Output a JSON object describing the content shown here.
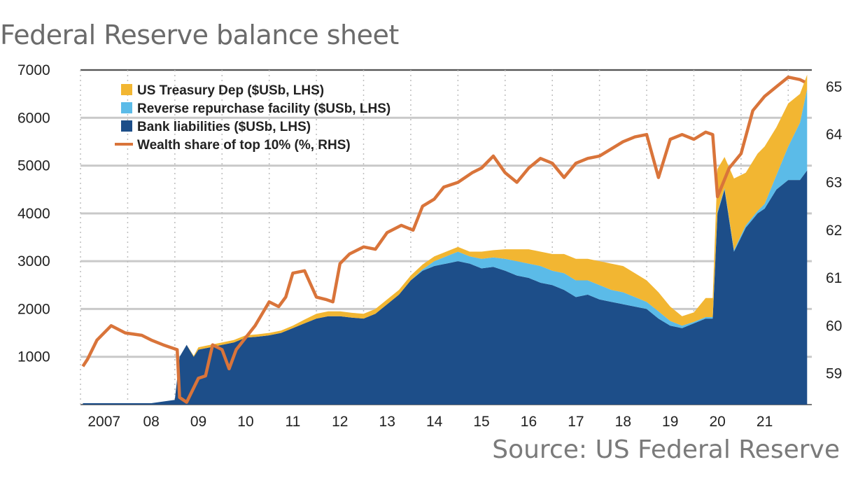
{
  "title": "Federal Reserve balance sheet",
  "source": "Source: US Federal Reserve",
  "chart_data": {
    "type": "area",
    "x_range": [
      2006.5,
      2022.0
    ],
    "ylim_left": [
      0,
      7000
    ],
    "ylim_right": [
      58.35,
      65.35
    ],
    "left_ticks": [
      1000,
      2000,
      3000,
      4000,
      5000,
      6000,
      7000
    ],
    "left_tick_labels": [
      "1000",
      "2000",
      "3000",
      "4000",
      "5000",
      "6000",
      "7000"
    ],
    "right_ticks": [
      59,
      60,
      61,
      62,
      63,
      64,
      65
    ],
    "right_tick_labels": [
      "59",
      "60",
      "61",
      "62",
      "63",
      "64",
      "65"
    ],
    "x_ticks": [
      2007,
      2008,
      2009,
      2010,
      2011,
      2012,
      2013,
      2014,
      2015,
      2016,
      2017,
      2018,
      2019,
      2020,
      2021
    ],
    "x_tick_labels": [
      "2007",
      "08",
      "09",
      "10",
      "11",
      "12",
      "13",
      "14",
      "15",
      "16",
      "17",
      "18",
      "19",
      "20",
      "21"
    ],
    "grid": true,
    "legend_position": "top-left",
    "colors": {
      "bank": "#1d4e89",
      "rrp": "#5bbbe8",
      "tga": "#f2b632",
      "wealth": "#d9743a",
      "grid": "#c9c9c9"
    },
    "legend": [
      "US Treasury Dep ($USb, LHS)",
      "Reverse repurchase facility ($USb, LHS)",
      "Bank liabilities ($USb, LHS)",
      "Wealth share of top 10% (%, RHS)"
    ],
    "stack_x": [
      2006.55,
      2007.0,
      2007.5,
      2008.0,
      2008.5,
      2008.6,
      2008.75,
      2008.9,
      2009.0,
      2009.25,
      2009.5,
      2009.75,
      2010.0,
      2010.25,
      2010.5,
      2010.75,
      2011.0,
      2011.25,
      2011.5,
      2011.75,
      2012.0,
      2012.25,
      2012.5,
      2012.75,
      2013.0,
      2013.25,
      2013.5,
      2013.75,
      2014.0,
      2014.25,
      2014.5,
      2014.75,
      2015.0,
      2015.25,
      2015.5,
      2015.75,
      2016.0,
      2016.25,
      2016.5,
      2016.75,
      2017.0,
      2017.25,
      2017.5,
      2017.75,
      2018.0,
      2018.25,
      2018.5,
      2018.75,
      2019.0,
      2019.25,
      2019.5,
      2019.75,
      2019.9,
      2020.0,
      2020.15,
      2020.35,
      2020.6,
      2020.85,
      2021.0,
      2021.25,
      2021.5,
      2021.75,
      2021.9
    ],
    "series": [
      {
        "name": "Bank liabilities ($USb, LHS)",
        "values": [
          30,
          30,
          30,
          30,
          100,
          1000,
          1250,
          1000,
          1150,
          1200,
          1250,
          1300,
          1400,
          1420,
          1450,
          1500,
          1600,
          1700,
          1800,
          1850,
          1850,
          1820,
          1800,
          1900,
          2100,
          2300,
          2600,
          2800,
          2900,
          2950,
          3000,
          2950,
          2850,
          2880,
          2800,
          2700,
          2650,
          2550,
          2500,
          2400,
          2250,
          2300,
          2200,
          2150,
          2100,
          2050,
          2000,
          1800,
          1650,
          1600,
          1700,
          1800,
          1800,
          4000,
          4500,
          3200,
          3700,
          4000,
          4100,
          4500,
          4700,
          4700,
          4900
        ]
      },
      {
        "name": "Reverse repurchase facility ($USb, LHS)",
        "values": [
          0,
          0,
          0,
          0,
          0,
          0,
          0,
          0,
          0,
          0,
          0,
          0,
          0,
          0,
          0,
          0,
          0,
          0,
          0,
          0,
          0,
          0,
          0,
          0,
          0,
          0,
          0,
          30,
          100,
          150,
          200,
          150,
          200,
          200,
          250,
          300,
          300,
          350,
          300,
          350,
          350,
          300,
          300,
          250,
          250,
          200,
          150,
          150,
          100,
          50,
          30,
          30,
          30,
          30,
          30,
          30,
          50,
          50,
          100,
          300,
          700,
          1200,
          1700
        ]
      },
      {
        "name": "US Treasury Dep ($USb, LHS)",
        "values": [
          0,
          0,
          0,
          0,
          0,
          0,
          0,
          20,
          50,
          50,
          50,
          50,
          50,
          50,
          50,
          50,
          50,
          80,
          100,
          100,
          100,
          100,
          100,
          100,
          100,
          100,
          100,
          100,
          100,
          100,
          100,
          100,
          150,
          150,
          200,
          250,
          300,
          300,
          350,
          400,
          450,
          450,
          500,
          550,
          550,
          500,
          450,
          400,
          300,
          200,
          200,
          400,
          400,
          900,
          650,
          1500,
          1100,
          1200,
          1200,
          1000,
          900,
          600,
          300
        ]
      }
    ],
    "wealth_share": {
      "name": "Wealth share of top 10% (%, RHS)",
      "x": [
        2006.55,
        2006.65,
        2006.85,
        2007.15,
        2007.45,
        2007.8,
        2008.0,
        2008.25,
        2008.4,
        2008.55,
        2008.6,
        2008.75,
        2009.0,
        2009.15,
        2009.3,
        2009.5,
        2009.65,
        2009.8,
        2010.0,
        2010.2,
        2010.5,
        2010.7,
        2010.85,
        2011.0,
        2011.25,
        2011.5,
        2011.7,
        2011.85,
        2012.0,
        2012.2,
        2012.5,
        2012.75,
        2013.0,
        2013.3,
        2013.55,
        2013.75,
        2014.0,
        2014.2,
        2014.5,
        2014.8,
        2015.0,
        2015.25,
        2015.5,
        2015.75,
        2016.0,
        2016.25,
        2016.5,
        2016.75,
        2017.0,
        2017.25,
        2017.5,
        2017.75,
        2018.0,
        2018.25,
        2018.5,
        2018.75,
        2019.0,
        2019.25,
        2019.5,
        2019.75,
        2019.9,
        2020.0,
        2020.25,
        2020.5,
        2020.75,
        2021.0,
        2021.25,
        2021.5,
        2021.75,
        2021.85
      ],
      "values": [
        59.15,
        59.3,
        59.7,
        60.0,
        59.85,
        59.8,
        59.7,
        59.6,
        59.55,
        59.5,
        58.5,
        58.4,
        58.9,
        58.95,
        59.6,
        59.5,
        59.1,
        59.5,
        59.75,
        60.0,
        60.5,
        60.4,
        60.6,
        61.1,
        61.15,
        60.6,
        60.55,
        60.5,
        61.3,
        61.5,
        61.65,
        61.6,
        61.95,
        62.1,
        62.0,
        62.5,
        62.65,
        62.9,
        63.0,
        63.2,
        63.3,
        63.55,
        63.2,
        63.0,
        63.3,
        63.5,
        63.4,
        63.1,
        63.4,
        63.5,
        63.55,
        63.7,
        63.85,
        63.95,
        64.0,
        63.1,
        63.9,
        64.0,
        63.9,
        64.05,
        64.0,
        62.7,
        63.3,
        63.6,
        64.5,
        64.8,
        65.0,
        65.2,
        65.15,
        65.1
      ]
    }
  }
}
